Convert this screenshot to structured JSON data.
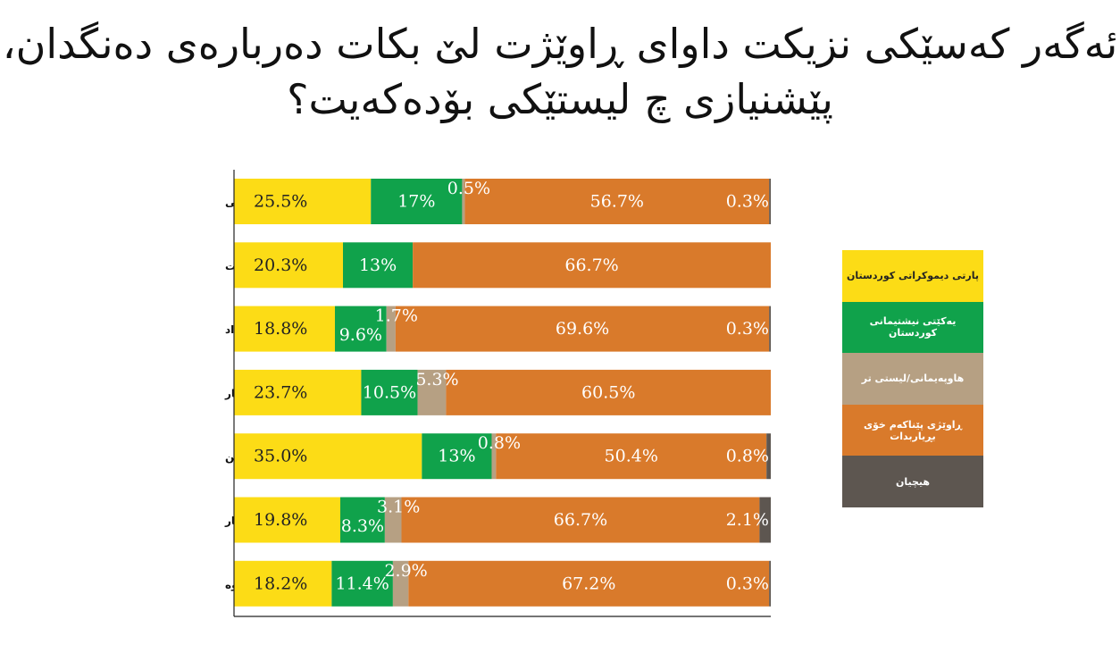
{
  "title": {
    "line1": "ئەگەر کەسێکی نزیکت داوای ڕاوێژت لێ بکات دەربارەی دەنگدان،",
    "line2": "پێشنیازی چ لیستێکی بۆدەکەیت؟"
  },
  "chart_data": {
    "type": "bar",
    "orientation": "horizontal",
    "stacked": true,
    "unit": "%",
    "xlim": [
      0,
      100
    ],
    "categories": [
      "فەرمانبەری حکومی",
      "کەرتی تایبەت",
      "کاری ئازاد",
      "خوێندکار",
      "خانەنشین",
      "بێکار",
      "ژنی ماڵەوە"
    ],
    "series": [
      {
        "name": "پارتی دیموکراتی کوردستان",
        "color": "#FCDC16",
        "text_color": "#222222",
        "values": [
          25.5,
          20.3,
          18.8,
          23.7,
          35.0,
          19.8,
          18.2
        ],
        "labels": [
          "25.5%",
          "20.3%",
          "18.8%",
          "23.7%",
          "35.0%",
          "19.8%",
          "18.2%"
        ]
      },
      {
        "name": "یەکێتی نیشتیمانی کوردستان",
        "color": "#10A24B",
        "text_color": "#ffffff",
        "values": [
          17,
          13,
          9.6,
          10.5,
          13,
          8.3,
          11.4
        ],
        "labels": [
          "17%",
          "13%",
          "9.6%",
          "10.5%",
          "13%",
          "8.3%",
          "11.4%"
        ]
      },
      {
        "name": "هاوپەیمانی/لیستی تر",
        "color": "#B6A083",
        "text_color": "#ffffff",
        "values": [
          0.5,
          0,
          1.7,
          5.3,
          0.8,
          3.1,
          2.9
        ],
        "labels": [
          "0.5%",
          "",
          "1.7%",
          "5.3%",
          "0.8%",
          "3.1%",
          "2.9%"
        ]
      },
      {
        "name": "ڕاوێژی پێناکەم خۆی بڕیاربدات",
        "color": "#D97A2B",
        "text_color": "#ffffff",
        "values": [
          56.7,
          66.7,
          69.6,
          60.5,
          50.4,
          66.7,
          67.2
        ],
        "labels": [
          "56.7%",
          "66.7%",
          "69.6%",
          "60.5%",
          "50.4%",
          "66.7%",
          "67.2%"
        ]
      },
      {
        "name": "هیچیان",
        "color": "#5D5650",
        "text_color": "#ffffff",
        "values": [
          0.3,
          0,
          0.3,
          0,
          0.8,
          2.1,
          0.3
        ],
        "labels": [
          "0.3%",
          "",
          "0.3%",
          "",
          "0.8%",
          "2.1%",
          "0.3%"
        ]
      }
    ]
  }
}
